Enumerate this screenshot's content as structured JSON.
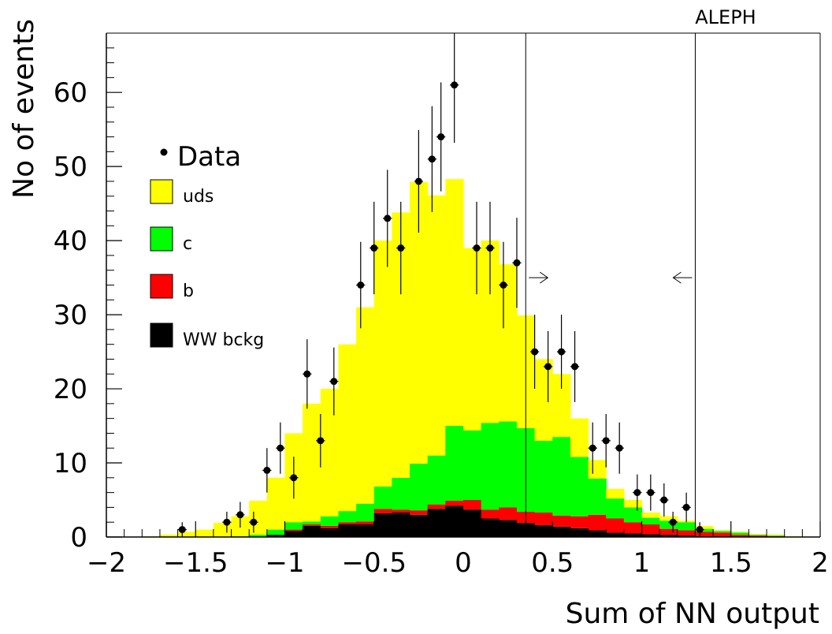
{
  "chart_data": {
    "type": "bar",
    "title": "ALEPH",
    "xlabel": "Sum of NN output",
    "ylabel": "No of events",
    "xlim": [
      -2,
      2
    ],
    "ylim": [
      0,
      68
    ],
    "x_ticks": [
      -2,
      -1.5,
      -1,
      -0.5,
      0,
      0.5,
      1,
      1.5,
      2
    ],
    "x_tick_labels": [
      "−2",
      "−1.5",
      "−1",
      "−0.5",
      "0",
      "0.5",
      "1",
      "1.5",
      "2"
    ],
    "y_ticks": [
      0,
      10,
      20,
      30,
      40,
      50,
      60
    ],
    "y_tick_labels": [
      "0",
      "10",
      "20",
      "30",
      "40",
      "50",
      "60"
    ],
    "bin_width": 0.1,
    "bin_centers": [
      -1.85,
      -1.75,
      -1.65,
      -1.55,
      -1.45,
      -1.35,
      -1.25,
      -1.15,
      -1.05,
      -0.95,
      -0.85,
      -0.75,
      -0.65,
      -0.55,
      -0.45,
      -0.35,
      -0.25,
      -0.15,
      -0.05,
      0.05,
      0.15,
      0.25,
      0.35,
      0.45,
      0.55,
      0.65,
      0.75,
      0.85,
      0.95,
      1.05,
      1.15,
      1.25,
      1.35,
      1.45,
      1.55,
      1.65,
      1.75,
      1.85
    ],
    "stacked_series": [
      {
        "name": "WW bckg",
        "color": "#000000",
        "values": [
          0,
          0,
          0,
          0,
          0,
          0,
          0,
          0,
          0.3,
          0.8,
          1.5,
          1.2,
          1.7,
          1.7,
          3.2,
          3.3,
          3.0,
          3.8,
          4.2,
          3.7,
          2.5,
          2.3,
          1.9,
          1.6,
          1.4,
          1.2,
          0.9,
          0.6,
          0.5,
          0.4,
          0.3,
          0.2,
          0.1,
          0.1,
          0,
          0,
          0,
          0
        ]
      },
      {
        "name": "b",
        "color": "#ff0000",
        "values": [
          0,
          0,
          0,
          0,
          0,
          0,
          0,
          0,
          0,
          0.2,
          0.2,
          0.3,
          0.3,
          0.4,
          0.6,
          0.4,
          0.6,
          0.6,
          0.7,
          1.3,
          1.2,
          1.7,
          1.5,
          1.7,
          1.5,
          1.6,
          2.1,
          1.9,
          1.5,
          1.3,
          0.8,
          0.7,
          0.6,
          0.5,
          0.3,
          0.2,
          0.1,
          0
        ]
      },
      {
        "name": "c",
        "color": "#00ff00",
        "values": [
          0,
          0,
          0,
          0,
          0,
          0,
          0.1,
          0.3,
          0.7,
          1.0,
          0.4,
          1.3,
          1.5,
          2.4,
          3.0,
          4.3,
          6.3,
          6.6,
          10.1,
          9.4,
          11.7,
          11.6,
          11.3,
          9.7,
          10.6,
          8.0,
          4.9,
          2.7,
          2.0,
          0.9,
          1.1,
          1.1,
          0.4,
          0.2,
          0.3,
          0.1,
          0.1,
          0
        ]
      },
      {
        "name": "uds",
        "color": "#ffff00",
        "values": [
          0,
          0.1,
          0.3,
          0.7,
          1.0,
          1.9,
          2.7,
          4.6,
          7.0,
          12.0,
          15.9,
          17.2,
          22.5,
          26.5,
          33.2,
          35.8,
          38.0,
          35.1,
          33.3,
          24.6,
          24.6,
          21.2,
          15.2,
          11.0,
          8.5,
          5.2,
          2.5,
          1.3,
          1.0,
          0.7,
          0.6,
          0.2,
          0.4,
          0.1,
          0.1,
          0.1,
          0.1,
          0.1
        ]
      }
    ],
    "data_points": {
      "name": "Data",
      "x": [
        -1.575,
        -1.325,
        -1.25,
        -1.175,
        -1.1,
        -1.025,
        -0.95,
        -0.875,
        -0.8,
        -0.725,
        -0.575,
        -0.5,
        -0.425,
        -0.35,
        -0.25,
        -0.175,
        -0.125,
        -0.05,
        0.075,
        0.15,
        0.225,
        0.3,
        0.4,
        0.475,
        0.55,
        0.625,
        0.725,
        0.8,
        0.875,
        0.975,
        1.05,
        1.125,
        1.175,
        1.25,
        1.325
      ],
      "y": [
        1,
        2,
        3,
        2,
        9,
        12,
        8,
        22,
        13,
        21,
        34,
        39,
        43,
        39,
        48,
        51,
        54,
        61,
        39,
        39,
        34,
        37,
        25,
        23,
        25,
        23,
        12,
        13,
        12,
        6,
        6,
        5,
        2,
        4,
        1
      ]
    },
    "legend": {
      "placement": "left",
      "data_label": "Data",
      "items": [
        "uds",
        "c",
        "b",
        "WW bckg"
      ]
    },
    "cut_lines": {
      "values": [
        0.35,
        1.3
      ],
      "arrows": [
        "right",
        "left"
      ],
      "arrow_y": 35
    },
    "grid": false
  }
}
